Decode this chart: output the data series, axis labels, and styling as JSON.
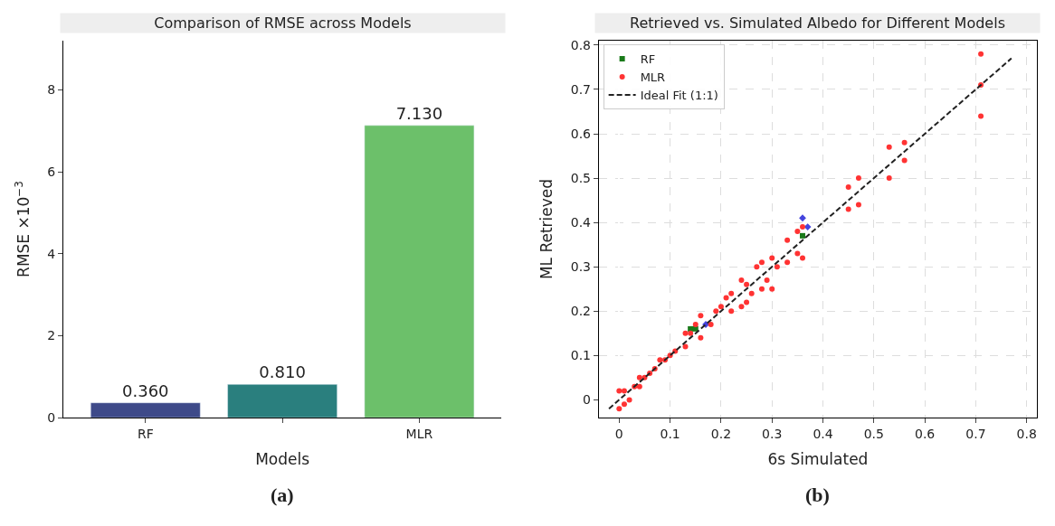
{
  "chart_data": [
    {
      "type": "bar",
      "title": "Comparison of RMSE across Models",
      "xlabel": "Models",
      "ylabel": "RMSE ×10$^{−3}$",
      "categories": [
        "RF",
        null,
        "MLR"
      ],
      "values": [
        0.36,
        0.81,
        7.13
      ],
      "value_labels": [
        "0.360",
        "0.810",
        "7.130"
      ],
      "colors": [
        "#3e4a89",
        "#2a7f7e",
        "#6cc06a"
      ],
      "ylim": [
        0,
        9.2
      ],
      "yticks": [
        0,
        2,
        4,
        6,
        8
      ],
      "grid": false,
      "legend": false,
      "annotations": [
        "(a)"
      ]
    },
    {
      "type": "scatter",
      "title": "Retrieved vs. Simulated Albedo for Different Models",
      "xlabel": "6s Simulated",
      "ylabel": "ML Retrieved",
      "xlim": [
        -0.04,
        0.82
      ],
      "ylim": [
        -0.04,
        0.81
      ],
      "xticks": [
        0.0,
        0.1,
        0.2,
        0.3,
        0.4,
        0.5,
        0.6,
        0.7,
        0.8
      ],
      "yticks": [
        0.0,
        0.1,
        0.2,
        0.3,
        0.4,
        0.5,
        0.6,
        0.7,
        0.8
      ],
      "grid": true,
      "legend": "top left",
      "annotations": [
        "(b)"
      ],
      "series": [
        {
          "name": "RF",
          "color": "#1a7a1a",
          "marker": "square",
          "x": [
            0.14,
            0.15,
            0.36
          ],
          "values": [
            0.16,
            0.16,
            0.37
          ]
        },
        {
          "color": "#4444dd",
          "marker": "diamond",
          "x": [
            0.17,
            0.36,
            0.37
          ],
          "values": [
            0.17,
            0.41,
            0.39
          ]
        },
        {
          "name": "MLR",
          "color": "#ff3333",
          "marker": "circle",
          "x": [
            0.0,
            0.0,
            0.01,
            0.01,
            0.02,
            0.03,
            0.04,
            0.04,
            0.05,
            0.06,
            0.07,
            0.08,
            0.09,
            0.1,
            0.11,
            0.13,
            0.13,
            0.14,
            0.15,
            0.16,
            0.16,
            0.18,
            0.19,
            0.2,
            0.21,
            0.22,
            0.22,
            0.24,
            0.24,
            0.25,
            0.25,
            0.26,
            0.27,
            0.28,
            0.28,
            0.29,
            0.3,
            0.3,
            0.31,
            0.33,
            0.33,
            0.35,
            0.35,
            0.36,
            0.36,
            0.45,
            0.45,
            0.47,
            0.47,
            0.53,
            0.53,
            0.56,
            0.56,
            0.71,
            0.71,
            0.71
          ],
          "values": [
            -0.02,
            0.02,
            -0.01,
            0.02,
            0.0,
            0.03,
            0.03,
            0.05,
            0.05,
            0.06,
            0.07,
            0.09,
            0.09,
            0.1,
            0.11,
            0.12,
            0.15,
            0.15,
            0.17,
            0.14,
            0.19,
            0.17,
            0.2,
            0.21,
            0.23,
            0.2,
            0.24,
            0.21,
            0.27,
            0.22,
            0.26,
            0.24,
            0.3,
            0.25,
            0.31,
            0.27,
            0.25,
            0.32,
            0.3,
            0.31,
            0.36,
            0.33,
            0.38,
            0.32,
            0.39,
            0.43,
            0.48,
            0.44,
            0.5,
            0.5,
            0.57,
            0.54,
            0.58,
            0.64,
            0.71,
            0.78
          ]
        },
        {
          "name": "Ideal Fit (1:1)",
          "type": "line",
          "color": "#222222",
          "line_style": "dashed",
          "x": [
            -0.02,
            0.77
          ],
          "values": [
            -0.02,
            0.77
          ]
        }
      ]
    }
  ]
}
